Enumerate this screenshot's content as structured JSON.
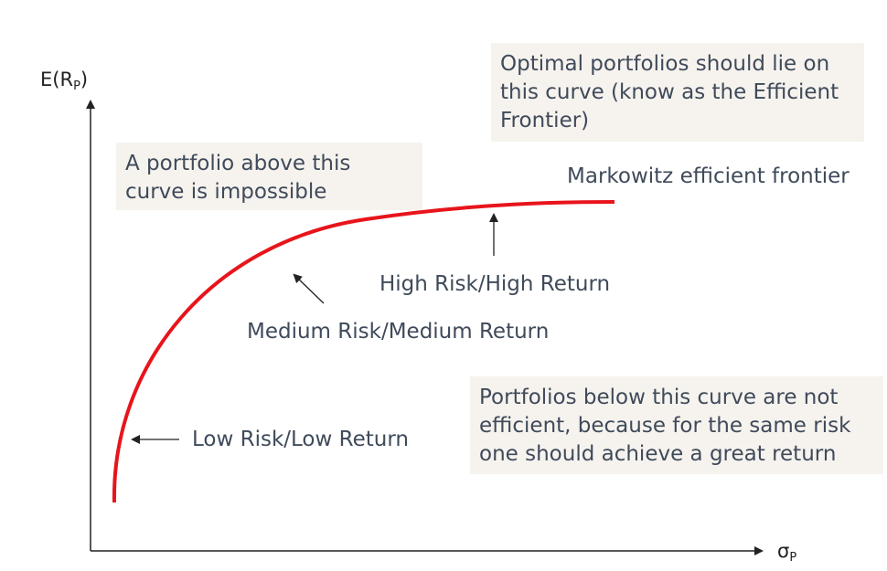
{
  "axes": {
    "y_title_main": "E(R",
    "y_title_sub": "P",
    "y_title_close": ")",
    "x_title_main": "σ",
    "x_title_sub": "P"
  },
  "notes": {
    "optimal": "Optimal portfolios should lie on this curve (know as the Efficient Frontier)",
    "impossible": "A portfolio above this curve is impossible",
    "below": "Portfolios below this curve are not efficient, because for the same risk one should achieve a great return"
  },
  "labels": {
    "frontier": "Markowitz efficient frontier",
    "high": "High Risk/High Return",
    "medium": "Medium Risk/Medium Return",
    "low": "Low Risk/Low Return"
  },
  "colors": {
    "curve": "#e8141b",
    "axis": "#222222",
    "text": "#3f4a5a",
    "note_bg": "#f6f3ee"
  }
}
